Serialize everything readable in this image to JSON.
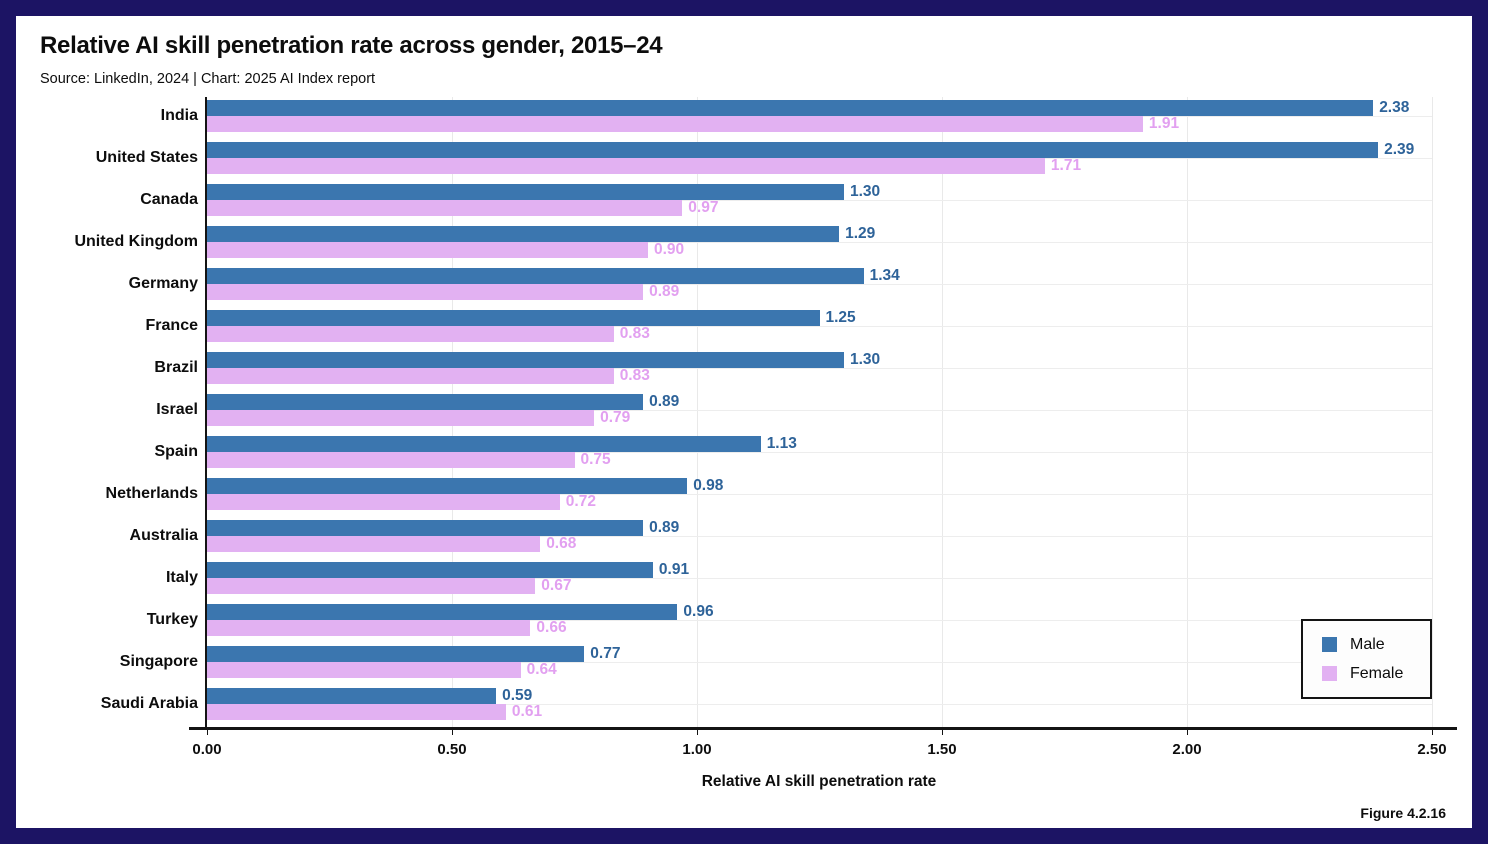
{
  "colors": {
    "frame_border": "#1c1464",
    "background": "#ffffff",
    "axis": "#141414",
    "gridline": "#e9e9e9"
  },
  "chart_data": {
    "type": "bar",
    "orientation": "horizontal",
    "title": "Relative AI skill penetration rate across gender, 2015–24",
    "subtitle": "Source: LinkedIn, 2024 | Chart: 2025 AI Index report",
    "figure_label": "Figure 4.2.16",
    "categories": [
      "India",
      "United States",
      "Canada",
      "United Kingdom",
      "Germany",
      "France",
      "Brazil",
      "Israel",
      "Spain",
      "Netherlands",
      "Australia",
      "Italy",
      "Turkey",
      "Singapore",
      "Saudi Arabia"
    ],
    "series": [
      {
        "name": "Male",
        "color": "#3b76af",
        "label_color": "#2e6399",
        "values": [
          2.38,
          2.39,
          1.3,
          1.29,
          1.34,
          1.25,
          1.3,
          0.89,
          1.13,
          0.98,
          0.89,
          0.91,
          0.96,
          0.77,
          0.59
        ]
      },
      {
        "name": "Female",
        "color": "#e2b1f2",
        "label_color": "#e2a0f0",
        "values": [
          1.91,
          1.71,
          0.97,
          0.9,
          0.89,
          0.83,
          0.83,
          0.79,
          0.75,
          0.72,
          0.68,
          0.67,
          0.66,
          0.64,
          0.61
        ]
      }
    ],
    "xlabel": "Relative AI skill penetration rate",
    "xlim": [
      0,
      2.5
    ],
    "xticks": [
      "0.00",
      "0.50",
      "1.00",
      "1.50",
      "2.00",
      "2.50"
    ],
    "grid": true,
    "legend_position": "inside-bottom-right",
    "value_label_decimals": 2
  }
}
